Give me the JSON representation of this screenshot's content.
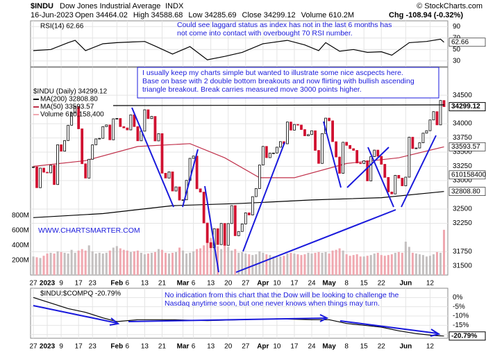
{
  "header": {
    "symbol": "$INDU",
    "name": "Dow Jones Industrial Average",
    "exchange": "INDX",
    "copyright": "© StockCharts.com",
    "date": "16-Jun-2023",
    "stats": [
      "Open 34464.02",
      "High 34588.68",
      "Low 34285.69",
      "Close 34299.12",
      "Volume 610.2M"
    ],
    "change": "Chg -108.94 (-0.32%)"
  },
  "chart_data": [
    {
      "type": "line",
      "title": "RSI(14) 62.66",
      "current_label": "62.66",
      "color": "#000",
      "x": [
        0,
        5,
        10,
        12,
        15,
        20,
        24,
        28,
        32,
        35,
        40,
        45,
        50,
        55,
        60,
        66,
        73,
        78,
        82,
        84,
        88,
        92,
        96,
        100,
        103,
        108,
        113,
        117,
        118
      ],
      "values": [
        48,
        50,
        62,
        66,
        48,
        60,
        62,
        63,
        64,
        56,
        42,
        55,
        32,
        38,
        45,
        60,
        66,
        58,
        48,
        62,
        47,
        50,
        45,
        46,
        40,
        62,
        64,
        68,
        62.66
      ],
      "xlim": [
        0,
        118.5
      ],
      "ylim": [
        20,
        100
      ],
      "yticks": [
        30,
        50,
        70,
        90
      ],
      "grid": true,
      "annotation": [
        "Could see laggard status as index has not in the last 6 months has",
        "not come into contact with overbought 70 RSI number."
      ]
    },
    {
      "type": "candlestick",
      "grid": true,
      "xlim": [
        0,
        118.5
      ],
      "ylim": [
        31340,
        34990
      ],
      "yticks": [
        31500,
        31750,
        32250,
        32500,
        33000,
        33250,
        33500,
        33750,
        34000,
        34500
      ],
      "y2lim": [
        0,
        2800
      ],
      "y2ticks": [
        {
          "value": 200,
          "label": "200M"
        },
        {
          "value": 400,
          "label": "400M"
        },
        {
          "value": 600,
          "label": "600M"
        },
        {
          "value": 800,
          "label": "800M"
        }
      ],
      "xticks": [
        {
          "value": 0,
          "label": "27"
        },
        {
          "value": 4,
          "label": "2023"
        },
        {
          "value": 8,
          "label": "9"
        },
        {
          "value": 13,
          "label": "17"
        },
        {
          "value": 17,
          "label": "23"
        },
        {
          "value": 24,
          "label": "Feb"
        },
        {
          "value": 27,
          "label": "6"
        },
        {
          "value": 32,
          "label": "13"
        },
        {
          "value": 37,
          "label": "21"
        },
        {
          "value": 43,
          "label": "Mar"
        },
        {
          "value": 46,
          "label": "6"
        },
        {
          "value": 51,
          "label": "13"
        },
        {
          "value": 56,
          "label": "20"
        },
        {
          "value": 61,
          "label": "27"
        },
        {
          "value": 66,
          "label": "Apr"
        },
        {
          "value": 70,
          "label": "10"
        },
        {
          "value": 75,
          "label": "17"
        },
        {
          "value": 80,
          "label": "24"
        },
        {
          "value": 85,
          "label": "May"
        },
        {
          "value": 90,
          "label": "8"
        },
        {
          "value": 95,
          "label": "15"
        },
        {
          "value": 100,
          "label": "22"
        },
        {
          "value": 107,
          "label": "Jun"
        },
        {
          "value": 114,
          "label": "12"
        }
      ],
      "series": [
        {
          "name": "$INDU (Daily) 34299.12",
          "current_label": "34299.12",
          "up_color": "#000",
          "down_color": "#d01030",
          "values": [
            33241,
            32875,
            33220,
            33147,
            33136,
            33270,
            32930,
            33630,
            33517,
            33704,
            33973,
            34189,
            34302,
            33910,
            33296,
            33044,
            33375,
            33629,
            33733,
            33743,
            33949,
            33978,
            33717,
            34086,
            34092,
            33949,
            33926,
            33891,
            34156,
            33949,
            33699,
            33869,
            34245,
            34089,
            34128,
            33697,
            33826,
            33130,
            33045,
            33154,
            32817,
            32889,
            32657,
            32662,
            33004,
            33391,
            33431,
            32856,
            32798,
            32255,
            31910,
            31820,
            32155,
            31875,
            32247,
            31862,
            32245,
            32561,
            32031,
            32106,
            32238,
            32433,
            32395,
            32718,
            32860,
            33274,
            33601,
            33403,
            33483,
            33485,
            33587,
            33685,
            33647,
            34030,
            33887,
            33987,
            33977,
            33897,
            33787,
            33809,
            33876,
            33531,
            33302,
            33827,
            34098,
            34051,
            33684,
            33415,
            33128,
            33674,
            33619,
            33562,
            33531,
            33309,
            33301,
            33349,
            32995,
            33421,
            33536,
            33427,
            33287,
            33056,
            32800,
            32765,
            33093,
            33043,
            32908,
            33061,
            33763,
            33563,
            33573,
            33665,
            33834,
            33877,
            34066,
            34212,
            33979,
            34408,
            34299
          ]
        },
        {
          "name": "MA(200) 32808.80",
          "current_label": "32808.80",
          "color": "#000",
          "x": [
            0,
            20,
            40,
            60,
            80,
            100,
            118
          ],
          "values": [
            32350,
            32420,
            32560,
            32600,
            32660,
            32700,
            32808.8
          ]
        },
        {
          "name": "MA(50) 33593.57",
          "current_label": "33593.57",
          "color": "#c0304a",
          "x": [
            0,
            15,
            30,
            45,
            55,
            65,
            75,
            90,
            105,
            118
          ],
          "values": [
            33250,
            33350,
            33600,
            33650,
            33400,
            33050,
            33050,
            33300,
            33400,
            33593.57
          ]
        },
        {
          "name": "Volume 610,158,400",
          "current_label": "610158400",
          "axis": "y2",
          "up_color": "#c4c0c0",
          "down_color": "#f0a8b0",
          "values": [
            250,
            240,
            230,
            260,
            290,
            300,
            290,
            320,
            310,
            300,
            290,
            340,
            300,
            330,
            350,
            330,
            400,
            320,
            290,
            300,
            290,
            300,
            330,
            370,
            390,
            360,
            340,
            330,
            310,
            320,
            330,
            300,
            280,
            290,
            300,
            310,
            350,
            340,
            300,
            290,
            300,
            310,
            370,
            330,
            290,
            300,
            320,
            350,
            360,
            400,
            470,
            500,
            420,
            390,
            350,
            650,
            380,
            330,
            350,
            300,
            310,
            290,
            280,
            270,
            280,
            320,
            300,
            280,
            270,
            250,
            240,
            250,
            260,
            290,
            300,
            290,
            280,
            270,
            280,
            300,
            290,
            300,
            310,
            300,
            310,
            290,
            330,
            340,
            360,
            330,
            280,
            260,
            270,
            280,
            250,
            250,
            260,
            270,
            290,
            300,
            270,
            260,
            270,
            280,
            300,
            310,
            300,
            450,
            380,
            300,
            290,
            280,
            270,
            250,
            260,
            280,
            310,
            300,
            610
          ]
        }
      ],
      "annotation": [
        "I usually keep my charts simple but wanted to illustrate some nice ascpects here.",
        "Base on base with 2 double bottom breakouts and now flirting with bullish ascending",
        "triangle breakout. Break carries measured move 3000 points higher."
      ],
      "watermark": "WWW.CHARTSMARTER.COM"
    },
    {
      "type": "line",
      "title": "$INDU:$COMPQ -20.79%",
      "current_label": "-20.79%",
      "color": "#000",
      "x": [
        0,
        5,
        10,
        15,
        20,
        24,
        30,
        40,
        50,
        60,
        70,
        80,
        85,
        90,
        95,
        100,
        105,
        110,
        115,
        118
      ],
      "values": [
        0,
        -3,
        -6,
        -8,
        -11,
        -13,
        -12,
        -12,
        -12.5,
        -12,
        -11.5,
        -12,
        -12,
        -14,
        -15,
        -16,
        -18,
        -19.5,
        -20.5,
        -20.79
      ],
      "xlim": [
        0,
        118.5
      ],
      "ylim": [
        -22,
        5
      ],
      "grid": true,
      "yticks": [
        {
          "value": 0,
          "label": "0%"
        },
        {
          "value": -5,
          "label": "-5%"
        },
        {
          "value": -10,
          "label": "-10%"
        },
        {
          "value": -15,
          "label": "-15%"
        },
        {
          "value": -20,
          "label": "-20%"
        }
      ],
      "xticks": [
        {
          "value": 0,
          "label": "27"
        },
        {
          "value": 4,
          "label": "2023"
        },
        {
          "value": 8,
          "label": "9"
        },
        {
          "value": 13,
          "label": "17"
        },
        {
          "value": 17,
          "label": "23"
        },
        {
          "value": 24,
          "label": "Feb"
        },
        {
          "value": 27,
          "label": "6"
        },
        {
          "value": 32,
          "label": "13"
        },
        {
          "value": 37,
          "label": "21"
        },
        {
          "value": 43,
          "label": "Mar"
        },
        {
          "value": 46,
          "label": "6"
        },
        {
          "value": 51,
          "label": "13"
        },
        {
          "value": 56,
          "label": "20"
        },
        {
          "value": 61,
          "label": "27"
        },
        {
          "value": 66,
          "label": "Apr"
        },
        {
          "value": 70,
          "label": "10"
        },
        {
          "value": 75,
          "label": "17"
        },
        {
          "value": 80,
          "label": "24"
        },
        {
          "value": 85,
          "label": "May"
        },
        {
          "value": 90,
          "label": "8"
        },
        {
          "value": 95,
          "label": "15"
        },
        {
          "value": 100,
          "label": "22"
        },
        {
          "value": 107,
          "label": "Jun"
        },
        {
          "value": 114,
          "label": "12"
        }
      ],
      "annotation": [
        "No indication from this chart that the Dow will be looking to challenge the",
        "Nasdaq anytime soon, but one never knows when things may turn."
      ]
    }
  ]
}
